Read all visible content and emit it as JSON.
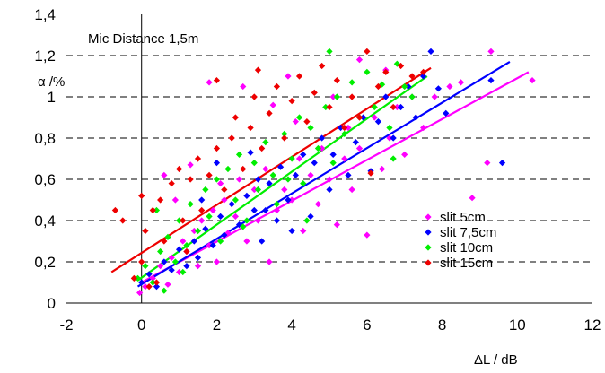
{
  "chart_data": {
    "type": "scatter",
    "title": "",
    "annotation": "Mic Distance 1,5m",
    "xlabel": "ΔL / dB",
    "ylabel": "α /%",
    "xlim": [
      -2,
      12
    ],
    "ylim": [
      0,
      1.4
    ],
    "xticks": [
      -2,
      0,
      2,
      4,
      6,
      8,
      10,
      12
    ],
    "xtick_labels": [
      "-2",
      "0",
      "2",
      "4",
      "6",
      "8",
      "10",
      "12"
    ],
    "yticks": [
      0,
      0.2,
      0.4,
      0.6,
      0.8,
      1,
      1.2,
      1.4
    ],
    "ytick_labels": [
      "0",
      "0,2",
      "0,4",
      "0,6",
      "0,8",
      "1",
      "1,2",
      "1,4"
    ],
    "grid": "horizontal dashed",
    "legend_position": "lower-right",
    "series": [
      {
        "name": "slit 5cm",
        "color": "#ff00ff",
        "marker": "diamond",
        "trend": [
          [
            0,
            0.1
          ],
          [
            10.3,
            1.12
          ]
        ],
        "points": [
          [
            -0.05,
            0.05
          ],
          [
            0.1,
            0.08
          ],
          [
            0.3,
            0.12
          ],
          [
            0.5,
            0.18
          ],
          [
            0.7,
            0.09
          ],
          [
            0.8,
            0.22
          ],
          [
            1.0,
            0.15
          ],
          [
            1.1,
            0.3
          ],
          [
            1.2,
            0.25
          ],
          [
            1.4,
            0.35
          ],
          [
            1.5,
            0.18
          ],
          [
            1.6,
            0.4
          ],
          [
            1.8,
            0.28
          ],
          [
            1.9,
            0.45
          ],
          [
            2.0,
            0.2
          ],
          [
            2.2,
            0.5
          ],
          [
            2.3,
            0.34
          ],
          [
            2.5,
            0.42
          ],
          [
            2.6,
            0.6
          ],
          [
            2.8,
            0.3
          ],
          [
            3.0,
            0.55
          ],
          [
            3.1,
            0.4
          ],
          [
            3.3,
            0.65
          ],
          [
            3.4,
            0.2
          ],
          [
            3.6,
            0.45
          ],
          [
            3.8,
            0.55
          ],
          [
            4.0,
            0.5
          ],
          [
            4.2,
            0.7
          ],
          [
            4.3,
            0.35
          ],
          [
            4.5,
            0.62
          ],
          [
            4.7,
            0.48
          ],
          [
            4.8,
            0.75
          ],
          [
            5.0,
            0.6
          ],
          [
            5.2,
            0.38
          ],
          [
            5.4,
            0.7
          ],
          [
            5.5,
            0.85
          ],
          [
            5.6,
            0.55
          ],
          [
            5.8,
            0.75
          ],
          [
            6.0,
            0.33
          ],
          [
            6.2,
            0.9
          ],
          [
            6.4,
            0.65
          ],
          [
            6.6,
            0.8
          ],
          [
            6.8,
            0.95
          ],
          [
            7.0,
            0.72
          ],
          [
            7.2,
            1.0
          ],
          [
            7.5,
            0.85
          ],
          [
            7.8,
            1.0
          ],
          [
            8.2,
            1.05
          ],
          [
            8.5,
            1.07
          ],
          [
            8.8,
            0.51
          ],
          [
            9.2,
            0.68
          ],
          [
            9.3,
            1.22
          ],
          [
            10.4,
            1.08
          ],
          [
            1.8,
            1.07
          ],
          [
            2.7,
            1.05
          ],
          [
            3.5,
            0.96
          ],
          [
            3.9,
            1.1
          ],
          [
            4.1,
            0.88
          ],
          [
            5.1,
            1.0
          ],
          [
            5.8,
            1.18
          ],
          [
            6.5,
            1.13
          ],
          [
            0.6,
            0.62
          ],
          [
            1.3,
            0.67
          ],
          [
            2.1,
            0.58
          ],
          [
            0.9,
            0.5
          ]
        ]
      },
      {
        "name": "slit 7,5cm",
        "color": "#0000ff",
        "marker": "diamond",
        "trend": [
          [
            -0.1,
            0.08
          ],
          [
            9.8,
            1.17
          ]
        ],
        "points": [
          [
            0.0,
            0.1
          ],
          [
            0.2,
            0.14
          ],
          [
            0.4,
            0.08
          ],
          [
            0.6,
            0.2
          ],
          [
            0.8,
            0.16
          ],
          [
            1.0,
            0.26
          ],
          [
            1.2,
            0.18
          ],
          [
            1.4,
            0.3
          ],
          [
            1.5,
            0.22
          ],
          [
            1.7,
            0.36
          ],
          [
            1.9,
            0.28
          ],
          [
            2.1,
            0.42
          ],
          [
            2.2,
            0.33
          ],
          [
            2.4,
            0.48
          ],
          [
            2.6,
            0.38
          ],
          [
            2.8,
            0.52
          ],
          [
            3.0,
            0.45
          ],
          [
            3.1,
            0.6
          ],
          [
            3.2,
            0.3
          ],
          [
            3.4,
            0.58
          ],
          [
            3.6,
            0.4
          ],
          [
            3.7,
            0.66
          ],
          [
            3.9,
            0.5
          ],
          [
            4.1,
            0.62
          ],
          [
            4.3,
            0.72
          ],
          [
            4.5,
            0.42
          ],
          [
            4.6,
            0.68
          ],
          [
            4.8,
            0.8
          ],
          [
            5.0,
            0.55
          ],
          [
            5.1,
            0.72
          ],
          [
            5.3,
            0.85
          ],
          [
            5.5,
            0.62
          ],
          [
            5.7,
            0.78
          ],
          [
            5.9,
            0.9
          ],
          [
            6.1,
            0.64
          ],
          [
            6.3,
            0.88
          ],
          [
            6.5,
            1.0
          ],
          [
            6.7,
            0.8
          ],
          [
            6.9,
            0.95
          ],
          [
            7.1,
            1.05
          ],
          [
            7.3,
            0.9
          ],
          [
            7.5,
            1.1
          ],
          [
            7.7,
            1.22
          ],
          [
            7.9,
            1.04
          ],
          [
            8.1,
            0.92
          ],
          [
            9.6,
            0.68
          ],
          [
            9.3,
            1.08
          ],
          [
            2.0,
            0.68
          ],
          [
            2.9,
            0.73
          ],
          [
            1.6,
            0.5
          ],
          [
            4.0,
            0.35
          ],
          [
            3.3,
            0.45
          ]
        ]
      },
      {
        "name": "slit 10cm",
        "color": "#00ee00",
        "marker": "diamond",
        "trend": [
          [
            -0.1,
            0.11
          ],
          [
            7.6,
            1.1
          ]
        ],
        "points": [
          [
            -0.1,
            0.12
          ],
          [
            0.1,
            0.18
          ],
          [
            0.3,
            0.1
          ],
          [
            0.5,
            0.25
          ],
          [
            0.6,
            0.06
          ],
          [
            0.7,
            0.32
          ],
          [
            0.9,
            0.2
          ],
          [
            1.0,
            0.4
          ],
          [
            1.2,
            0.28
          ],
          [
            1.3,
            0.48
          ],
          [
            1.5,
            0.35
          ],
          [
            1.7,
            0.55
          ],
          [
            1.8,
            0.42
          ],
          [
            2.0,
            0.6
          ],
          [
            2.1,
            0.3
          ],
          [
            2.3,
            0.65
          ],
          [
            2.5,
            0.5
          ],
          [
            2.6,
            0.72
          ],
          [
            2.8,
            0.4
          ],
          [
            3.0,
            0.68
          ],
          [
            3.1,
            0.55
          ],
          [
            3.3,
            0.78
          ],
          [
            3.5,
            0.62
          ],
          [
            3.6,
            0.48
          ],
          [
            3.8,
            0.82
          ],
          [
            4.0,
            0.7
          ],
          [
            4.2,
            0.9
          ],
          [
            4.3,
            0.58
          ],
          [
            4.5,
            0.85
          ],
          [
            4.7,
            0.75
          ],
          [
            4.9,
            0.95
          ],
          [
            5.1,
            0.68
          ],
          [
            5.2,
            1.0
          ],
          [
            5.4,
            0.82
          ],
          [
            5.6,
            1.07
          ],
          [
            5.8,
            0.9
          ],
          [
            6.0,
            1.12
          ],
          [
            6.2,
            0.95
          ],
          [
            6.4,
            1.06
          ],
          [
            6.6,
            0.85
          ],
          [
            6.8,
            1.16
          ],
          [
            7.0,
            1.05
          ],
          [
            7.2,
            1.0
          ],
          [
            5.0,
            1.22
          ],
          [
            3.9,
            0.6
          ],
          [
            2.7,
            0.37
          ],
          [
            1.1,
            0.15
          ],
          [
            0.4,
            0.45
          ],
          [
            6.7,
            0.7
          ],
          [
            4.4,
            0.4
          ]
        ]
      },
      {
        "name": "slit 15cm",
        "color": "#ee0000",
        "marker": "diamond",
        "trend": [
          [
            -0.8,
            0.15
          ],
          [
            7.7,
            1.14
          ]
        ],
        "points": [
          [
            -0.7,
            0.45
          ],
          [
            -0.5,
            0.4
          ],
          [
            -0.2,
            0.12
          ],
          [
            0.0,
            0.52
          ],
          [
            0.0,
            0.2
          ],
          [
            0.1,
            0.35
          ],
          [
            0.2,
            0.08
          ],
          [
            0.3,
            0.45
          ],
          [
            0.5,
            0.5
          ],
          [
            0.6,
            0.3
          ],
          [
            0.8,
            0.58
          ],
          [
            1.0,
            0.65
          ],
          [
            1.1,
            0.4
          ],
          [
            1.3,
            0.6
          ],
          [
            1.5,
            0.7
          ],
          [
            1.6,
            0.45
          ],
          [
            1.8,
            0.62
          ],
          [
            2.0,
            0.75
          ],
          [
            2.2,
            0.55
          ],
          [
            2.4,
            0.8
          ],
          [
            2.5,
            0.9
          ],
          [
            2.7,
            0.65
          ],
          [
            2.9,
            0.85
          ],
          [
            3.0,
            1.0
          ],
          [
            3.2,
            0.75
          ],
          [
            3.4,
            0.92
          ],
          [
            3.6,
            1.05
          ],
          [
            3.8,
            0.8
          ],
          [
            4.0,
            0.98
          ],
          [
            4.2,
            1.1
          ],
          [
            4.4,
            0.88
          ],
          [
            4.6,
            1.02
          ],
          [
            4.8,
            1.15
          ],
          [
            5.0,
            0.95
          ],
          [
            5.2,
            1.08
          ],
          [
            5.4,
            0.85
          ],
          [
            5.6,
            1.0
          ],
          [
            5.8,
            0.9
          ],
          [
            6.0,
            1.22
          ],
          [
            6.1,
            0.63
          ],
          [
            6.3,
            1.05
          ],
          [
            6.5,
            1.12
          ],
          [
            6.7,
            0.95
          ],
          [
            6.9,
            1.15
          ],
          [
            7.2,
            1.1
          ],
          [
            7.5,
            1.12
          ],
          [
            2.0,
            1.08
          ],
          [
            3.1,
            1.13
          ],
          [
            1.2,
            0.25
          ],
          [
            0.4,
            0.1
          ]
        ]
      }
    ]
  }
}
